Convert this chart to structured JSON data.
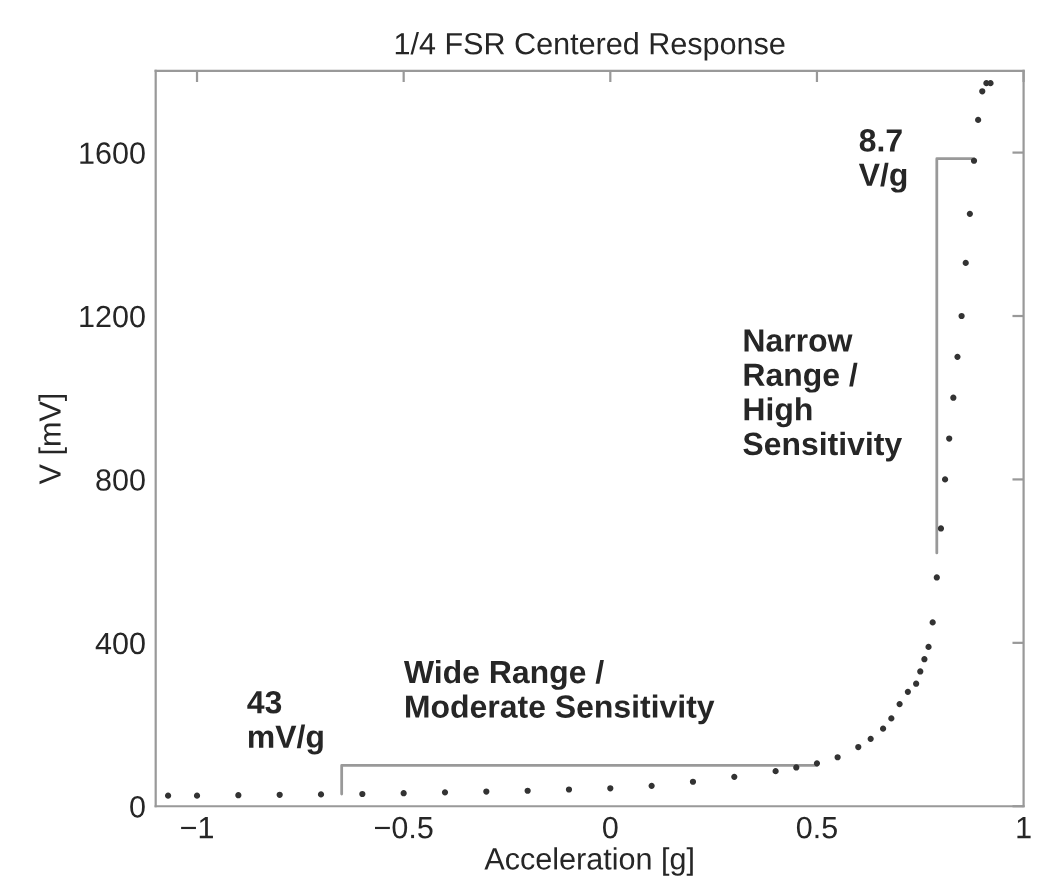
{
  "chart_data": {
    "type": "scatter",
    "title": "1/4 FSR Centered Response",
    "xlabel": "Acceleration [g]",
    "ylabel": "V [mV]",
    "xlim": [
      -1.1,
      1
    ],
    "ylim": [
      0,
      1800
    ],
    "xticks": [
      {
        "value": -1,
        "label": "−1"
      },
      {
        "value": -0.5,
        "label": "−0.5"
      },
      0,
      0.5,
      1
    ],
    "yticks": [
      0,
      400,
      800,
      1200,
      1600
    ],
    "grid": false,
    "series": [
      {
        "color": "#333333",
        "marker": "circle",
        "x": [
          -1.07,
          -1.0,
          -0.9,
          -0.8,
          -0.7,
          -0.6,
          -0.5,
          -0.4,
          -0.3,
          -0.2,
          -0.1,
          0,
          0.1,
          0.2,
          0.3,
          0.4,
          0.45,
          0.5,
          0.55,
          0.6,
          0.63,
          0.66,
          0.68,
          0.7,
          0.72,
          0.74,
          0.75,
          0.76,
          0.77,
          0.78,
          0.79,
          0.8,
          0.81,
          0.82,
          0.83,
          0.84,
          0.85,
          0.86,
          0.87,
          0.88,
          0.89,
          0.9,
          0.91,
          0.92
        ],
        "values": [
          26,
          26,
          27,
          28,
          29,
          30,
          32,
          34,
          36,
          38,
          41,
          44,
          50,
          60,
          72,
          86,
          95,
          105,
          120,
          145,
          165,
          190,
          215,
          250,
          280,
          300,
          330,
          360,
          390,
          450,
          560,
          680,
          800,
          900,
          1000,
          1100,
          1200,
          1330,
          1450,
          1580,
          1680,
          1750,
          1770,
          1770
        ]
      },
      {
        "type": "line",
        "marker": "none",
        "color": "#999999",
        "x": [
          -0.65,
          -0.65,
          0.5
        ],
        "values": [
          30,
          100,
          100
        ]
      },
      {
        "type": "line",
        "marker": "none",
        "color": "#999999",
        "x": [
          0.79,
          0.79,
          0.88
        ],
        "values": [
          620,
          1585,
          1585
        ]
      }
    ],
    "annotations": [
      "43\nmV/g",
      "Wide Range /\nModerate Sensitivity",
      "8.7\nV/g",
      "Narrow\nRange /\nHigh\nSensitivity"
    ]
  }
}
